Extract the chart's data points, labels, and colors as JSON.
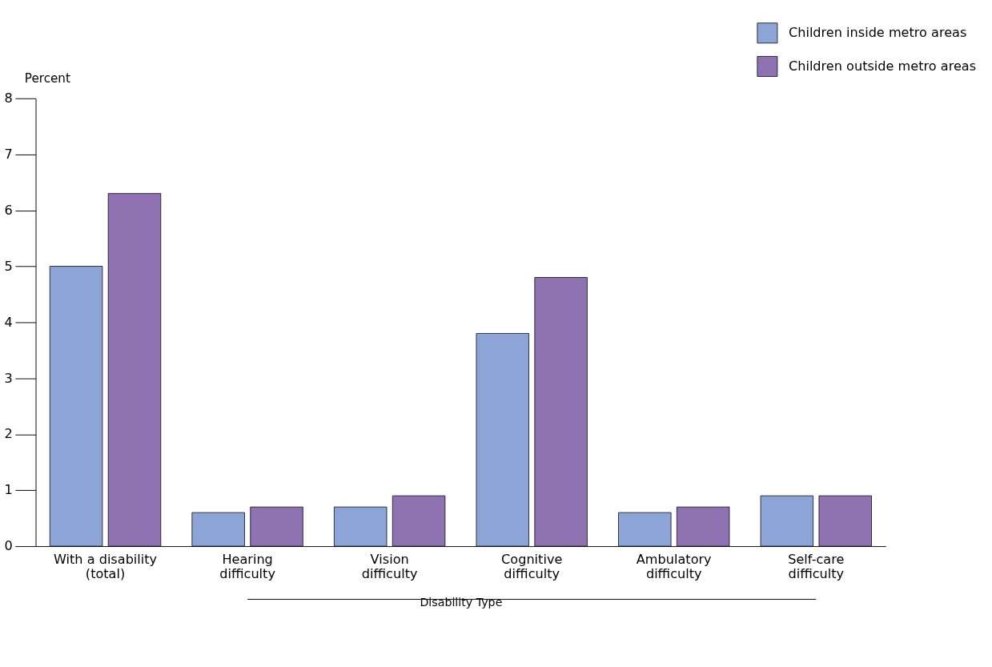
{
  "chart_data": {
    "type": "bar",
    "ylabel": "Percent",
    "xlabel": "Disability Type",
    "categories": [
      "With a disability\n(total)",
      "Hearing\ndifficulty",
      "Vision\ndifficulty",
      "Cognitive\ndifficulty",
      "Ambulatory\ndifficulty",
      "Self-care\ndifficulty"
    ],
    "series": [
      {
        "name": "Children inside metro areas",
        "color": "#8ca5d6",
        "values": [
          5.0,
          0.6,
          0.7,
          3.8,
          0.6,
          0.9
        ]
      },
      {
        "name": "Children outside metro areas",
        "color": "#8f72b2",
        "values": [
          6.3,
          0.7,
          0.9,
          4.8,
          0.7,
          0.9
        ]
      }
    ],
    "ylim": [
      0,
      8
    ],
    "yticks": [
      0,
      1,
      2,
      3,
      4,
      5,
      6,
      7,
      8
    ],
    "grid": false,
    "legend": "top right"
  }
}
